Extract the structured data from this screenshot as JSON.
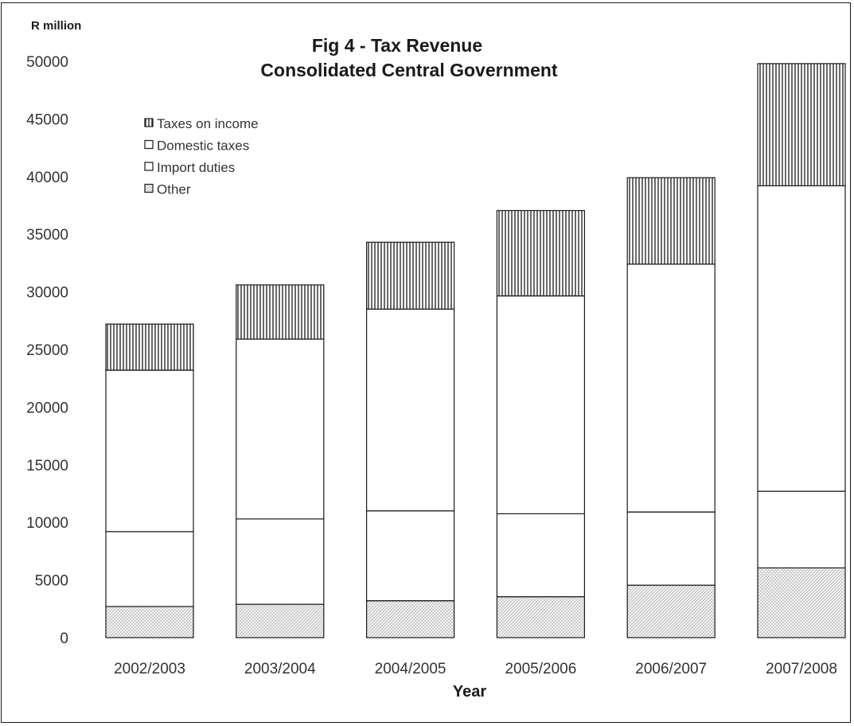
{
  "chart_data": {
    "type": "bar",
    "stacked": true,
    "title_line1": "Fig 4 - Tax Revenue",
    "title_line2": "Consolidated Central Government",
    "unit_label": "R million",
    "xlabel": "Year",
    "ylabel": "",
    "ylim": [
      0,
      50000
    ],
    "yticks": [
      0,
      5000,
      10000,
      15000,
      20000,
      25000,
      30000,
      35000,
      40000,
      45000,
      50000
    ],
    "grid": false,
    "legend_position": "top-left",
    "categories": [
      "2002/2003",
      "2003/2004",
      "2004/2005",
      "2005/2006",
      "2006/2007",
      "2007/2008"
    ],
    "series": [
      {
        "name": "Other",
        "values": [
          2700,
          2900,
          3200,
          3550,
          4550,
          6050
        ],
        "pattern": "dotted-hatch"
      },
      {
        "name": "Import duties",
        "values": [
          6500,
          7400,
          7800,
          7200,
          6350,
          6650
        ],
        "pattern": "blank"
      },
      {
        "name": "Domestic taxes",
        "values": [
          14000,
          15600,
          17500,
          18900,
          21500,
          26500
        ],
        "pattern": "blank"
      },
      {
        "name": "Taxes on income",
        "values": [
          4000,
          4700,
          5800,
          7400,
          7500,
          10600
        ],
        "pattern": "vertical-stripes"
      }
    ],
    "legend_order": [
      "Taxes on income",
      "Domestic taxes",
      "Import duties",
      "Other"
    ],
    "colors": {
      "ink": "#1a1a1a",
      "text": "#333333",
      "background": "#ffffff"
    }
  }
}
